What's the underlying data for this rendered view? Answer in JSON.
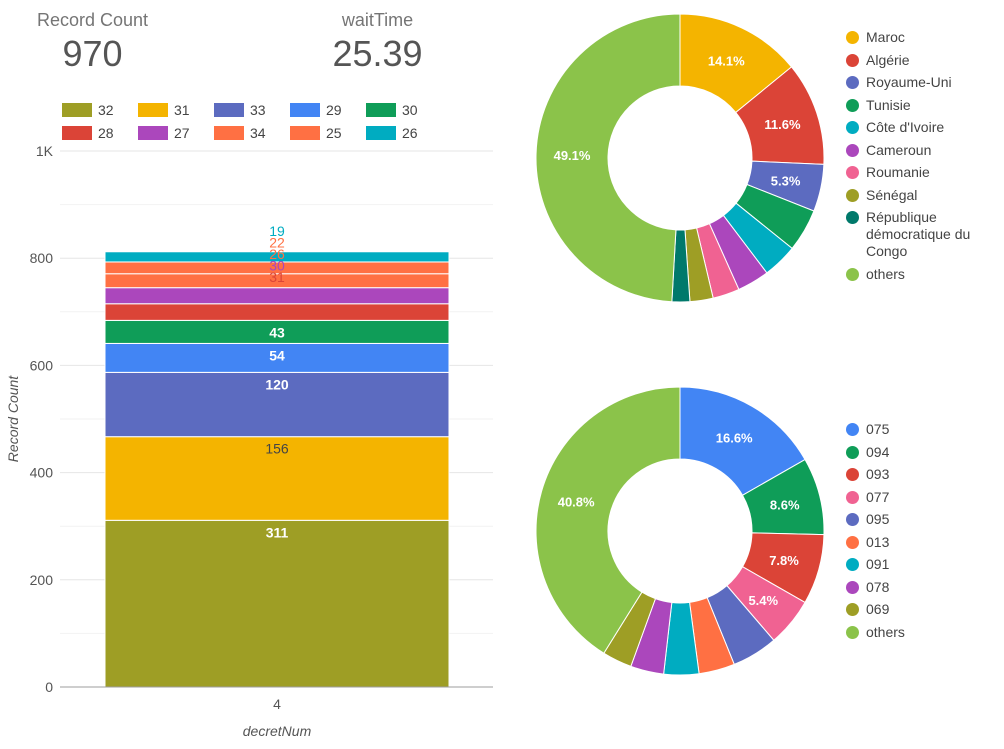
{
  "scorecards": [
    {
      "label": "Record Count",
      "value": "970"
    },
    {
      "label": "waitTime",
      "value": "25.39"
    }
  ],
  "chart_data": [
    {
      "type": "bar",
      "stacked": true,
      "categories": [
        "4"
      ],
      "xlabel": "decretNum",
      "ylabel": "Record Count",
      "ylim": [
        0,
        1000
      ],
      "yticks": [
        {
          "v": 0,
          "label": "0"
        },
        {
          "v": 200,
          "label": "200"
        },
        {
          "v": 400,
          "label": "400"
        },
        {
          "v": 600,
          "label": "600"
        },
        {
          "v": 800,
          "label": "800"
        },
        {
          "v": 1000,
          "label": "1K"
        }
      ],
      "grid": true,
      "legend_position": "top",
      "legend": [
        {
          "name": "32",
          "color": "#9e9e25"
        },
        {
          "name": "31",
          "color": "#f4b400"
        },
        {
          "name": "33",
          "color": "#5c6bc0"
        },
        {
          "name": "29",
          "color": "#4285f4"
        },
        {
          "name": "30",
          "color": "#0f9d58"
        },
        {
          "name": "28",
          "color": "#db4437"
        },
        {
          "name": "27",
          "color": "#ab47bc"
        },
        {
          "name": "34",
          "color": "#ff7043"
        },
        {
          "name": "25",
          "color": "#ff7043"
        },
        {
          "name": "26",
          "color": "#00acc1"
        }
      ],
      "series": [
        {
          "name": "32",
          "values": [
            311
          ],
          "color": "#9e9e25",
          "label": "311",
          "label_color": "#ffffff",
          "label_bold": true
        },
        {
          "name": "31",
          "values": [
            156
          ],
          "color": "#f4b400",
          "label": "156",
          "label_color": "#444444",
          "label_bold": false
        },
        {
          "name": "33",
          "values": [
            120
          ],
          "color": "#5c6bc0",
          "label": "120",
          "label_color": "#ffffff",
          "label_bold": true
        },
        {
          "name": "29",
          "values": [
            54
          ],
          "color": "#4285f4",
          "label": "54",
          "label_color": "#ffffff",
          "label_bold": true
        },
        {
          "name": "30",
          "values": [
            43
          ],
          "color": "#0f9d58",
          "label": "43",
          "label_color": "#ffffff",
          "label_bold": true
        },
        {
          "name": "28",
          "values": [
            31
          ],
          "color": "#db4437",
          "label": "31",
          "label_color": "#db4437",
          "label_bold": false
        },
        {
          "name": "27",
          "values": [
            30
          ],
          "color": "#ab47bc",
          "label": "30",
          "label_color": "#ab47bc",
          "label_bold": false
        },
        {
          "name": "34",
          "values": [
            26
          ],
          "color": "#ff7043",
          "label": "26",
          "label_color": "#ff7043",
          "label_bold": false
        },
        {
          "name": "25",
          "values": [
            22
          ],
          "color": "#ff7043",
          "label": "22",
          "label_color": "#ff7043",
          "label_bold": false
        },
        {
          "name": "26",
          "values": [
            19
          ],
          "color": "#00acc1",
          "label": "19",
          "label_color": "#00acc1",
          "label_bold": false
        }
      ]
    },
    {
      "type": "pie",
      "donut": true,
      "legend_position": "right",
      "slices": [
        {
          "name": "Maroc",
          "value": 14.1,
          "color": "#f4b400",
          "label": "14.1%"
        },
        {
          "name": "Algérie",
          "value": 11.6,
          "color": "#db4437",
          "label": "11.6%"
        },
        {
          "name": "Royaume-Uni",
          "value": 5.3,
          "color": "#5c6bc0",
          "label": "5.3%"
        },
        {
          "name": "Tunisie",
          "value": 4.8,
          "color": "#0f9d58",
          "label": ""
        },
        {
          "name": "Côte d'Ivoire",
          "value": 3.9,
          "color": "#00acc1",
          "label": ""
        },
        {
          "name": "Cameroun",
          "value": 3.6,
          "color": "#ab47bc",
          "label": ""
        },
        {
          "name": "Roumanie",
          "value": 3.0,
          "color": "#f06292",
          "label": ""
        },
        {
          "name": "Sénégal",
          "value": 2.6,
          "color": "#9e9e25",
          "label": ""
        },
        {
          "name": "République démocratique du Congo",
          "value": 2.0,
          "color": "#00796b",
          "label": ""
        },
        {
          "name": "others",
          "value": 49.1,
          "color": "#8bc34a",
          "label": "49.1%"
        }
      ]
    },
    {
      "type": "pie",
      "donut": true,
      "legend_position": "right",
      "slices": [
        {
          "name": "075",
          "value": 16.6,
          "color": "#4285f4",
          "label": "16.6%"
        },
        {
          "name": "094",
          "value": 8.6,
          "color": "#0f9d58",
          "label": "8.6%"
        },
        {
          "name": "093",
          "value": 7.8,
          "color": "#db4437",
          "label": "7.8%"
        },
        {
          "name": "077",
          "value": 5.4,
          "color": "#f06292",
          "label": "5.4%"
        },
        {
          "name": "095",
          "value": 5.1,
          "color": "#5c6bc0",
          "label": ""
        },
        {
          "name": "013",
          "value": 4.0,
          "color": "#ff7043",
          "label": ""
        },
        {
          "name": "091",
          "value": 3.9,
          "color": "#00acc1",
          "label": ""
        },
        {
          "name": "078",
          "value": 3.7,
          "color": "#ab47bc",
          "label": ""
        },
        {
          "name": "069",
          "value": 3.3,
          "color": "#9e9e25",
          "label": ""
        },
        {
          "name": "others",
          "value": 40.8,
          "color": "#8bc34a",
          "label": "40.8%"
        }
      ]
    }
  ]
}
